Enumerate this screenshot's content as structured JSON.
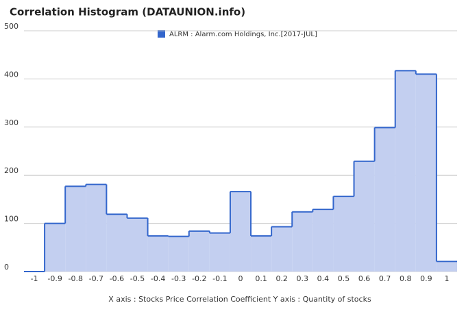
{
  "chart_data": {
    "type": "histogram",
    "title": "Correlation Histogram (DATAUNION.info)",
    "legend": "ALRM : Alarm.com Holdings, Inc.[2017-JUL]",
    "legend_position": "top",
    "axis_label": "X axis : Stocks Price Correlation Coefficient  Y axis : Quantity of stocks",
    "color": "#3366cc",
    "fill": "#c3cff0",
    "bins": [
      -1.05,
      -0.95,
      -0.85,
      -0.75,
      -0.65,
      -0.55,
      -0.45,
      -0.35,
      -0.25,
      -0.15,
      -0.05,
      0.05,
      0.15,
      0.25,
      0.35,
      0.45,
      0.55,
      0.65,
      0.75,
      0.85,
      0.95,
      1.05
    ],
    "values": [
      0,
      100,
      177,
      181,
      119,
      111,
      74,
      73,
      84,
      80,
      166,
      74,
      93,
      124,
      129,
      156,
      229,
      299,
      417,
      410,
      21
    ],
    "xlim": [
      -1.05,
      1.05
    ],
    "xticks": [
      -1,
      -0.9,
      -0.8,
      -0.7,
      -0.6,
      -0.5,
      -0.4,
      -0.3,
      -0.2,
      -0.1,
      0,
      0.1,
      0.2,
      0.3,
      0.4,
      0.5,
      0.6,
      0.7,
      0.8,
      0.9,
      1
    ],
    "ylim": [
      0,
      500
    ],
    "yticks": [
      0,
      100,
      200,
      300,
      400,
      500
    ],
    "grid": true
  }
}
